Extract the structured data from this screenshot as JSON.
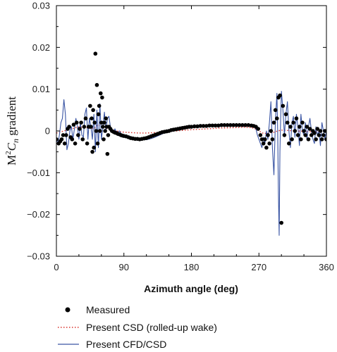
{
  "chart_data": {
    "type": "line",
    "title": "",
    "xlabel": "Azimuth angle (deg)",
    "ylabel_prefix": "M",
    "ylabel_sup": "2",
    "ylabel_c": "C",
    "ylabel_sub": "n",
    "ylabel_suffix": " gradient",
    "xlim": [
      0,
      360
    ],
    "ylim": [
      -0.03,
      0.03
    ],
    "xticks": [
      0,
      90,
      180,
      270,
      360
    ],
    "xtick_labels": [
      "0",
      "90",
      "180",
      "270",
      "360"
    ],
    "yticks": [
      0.03,
      0.02,
      0.01,
      0,
      -0.01,
      -0.02,
      -0.03
    ],
    "ytick_labels": [
      "0.03",
      "0.02",
      "0.01",
      "0",
      "−0.01",
      "−0.02",
      "−0.03"
    ],
    "grid": false,
    "legend_position": "bottom",
    "series": [
      {
        "name": "Measured",
        "style": "markers",
        "color": "#000000",
        "x": [
          0,
          3,
          5,
          7,
          9,
          11,
          13,
          15,
          17,
          19,
          21,
          23,
          25,
          27,
          29,
          31,
          33,
          35,
          37,
          39,
          41,
          43,
          45,
          46,
          47,
          48,
          49,
          50,
          51,
          52,
          53,
          54,
          55,
          56,
          57,
          58,
          59,
          60,
          61,
          62,
          63,
          64,
          65,
          66,
          67,
          68,
          69,
          70,
          72,
          74,
          76,
          78,
          80,
          82,
          84,
          86,
          88,
          90,
          93,
          96,
          99,
          102,
          105,
          108,
          111,
          114,
          117,
          120,
          123,
          126,
          129,
          132,
          135,
          138,
          141,
          144,
          147,
          150,
          153,
          156,
          159,
          162,
          165,
          168,
          171,
          174,
          177,
          180,
          184,
          188,
          192,
          196,
          200,
          204,
          208,
          212,
          216,
          220,
          224,
          228,
          232,
          236,
          240,
          244,
          248,
          252,
          256,
          260,
          263,
          266,
          269,
          272,
          274,
          276,
          278,
          280,
          282,
          284,
          286,
          288,
          290,
          292,
          294,
          296,
          298,
          300,
          302,
          304,
          306,
          308,
          310,
          312,
          314,
          316,
          318,
          320,
          322,
          324,
          326,
          328,
          330,
          332,
          334,
          336,
          338,
          340,
          342,
          344,
          346,
          348,
          350,
          352,
          354,
          356,
          358,
          360
        ],
        "y": [
          -0.002,
          -0.003,
          -0.0025,
          -0.002,
          -0.001,
          -0.003,
          -0.001,
          0.0005,
          0.001,
          -0.0015,
          -0.002,
          0.0015,
          -0.003,
          0.002,
          -0.001,
          0.0005,
          0.002,
          -0.002,
          0.001,
          0.003,
          -0.003,
          0.001,
          0.006,
          0.001,
          0.003,
          -0.005,
          0.005,
          -0.004,
          0.002,
          0.0185,
          0.0,
          0.011,
          -0.003,
          0.004,
          0.006,
          0.0,
          0.009,
          0.002,
          0.008,
          0.001,
          -0.002,
          0.002,
          0.0,
          0.003,
          0.001,
          -0.0055,
          -0.001,
          0.001,
          0.0005,
          0.0,
          -0.0002,
          -0.0004,
          -0.0005,
          -0.0007,
          -0.0008,
          -0.001,
          -0.0011,
          -0.0012,
          -0.0013,
          -0.0015,
          -0.0017,
          -0.0018,
          -0.0019,
          -0.0019,
          -0.002,
          -0.0019,
          -0.0018,
          -0.0017,
          -0.0015,
          -0.0013,
          -0.0011,
          -0.0009,
          -0.0007,
          -0.0005,
          -0.0003,
          -0.0002,
          -0.0001,
          0.0,
          0.0002,
          0.0003,
          0.0004,
          0.0005,
          0.0006,
          0.0007,
          0.0008,
          0.0009,
          0.001,
          0.001,
          0.0011,
          0.0011,
          0.0012,
          0.0012,
          0.0012,
          0.0013,
          0.0013,
          0.0013,
          0.0013,
          0.0014,
          0.0014,
          0.0014,
          0.0014,
          0.0014,
          0.0014,
          0.0014,
          0.0014,
          0.0014,
          0.0014,
          0.0013,
          0.0012,
          0.001,
          0.0005,
          -0.001,
          -0.002,
          -0.003,
          -0.002,
          -0.004,
          -0.001,
          -0.003,
          0.0,
          -0.002,
          0.002,
          0.005,
          0.003,
          0.008,
          0.0085,
          -0.022,
          0.006,
          -0.001,
          0.004,
          0.002,
          -0.003,
          0.001,
          -0.002,
          0.002,
          0.0,
          0.003,
          -0.001,
          0.001,
          -0.002,
          0.002,
          0.0,
          -0.001,
          0.001,
          -0.002,
          0.0005,
          -0.001,
          0.0,
          -0.0005,
          -0.002,
          0.0005,
          -0.001,
          0.0,
          -0.002,
          -0.001,
          0.0,
          -0.002
        ]
      },
      {
        "name": "Present CSD (rolled-up wake)",
        "style": "dotted",
        "color": "#d9312b",
        "x": [
          0,
          10,
          20,
          30,
          40,
          50,
          55,
          60,
          65,
          70,
          80,
          90,
          100,
          110,
          120,
          140,
          160,
          180,
          200,
          220,
          240,
          250,
          260,
          265,
          270,
          275,
          280,
          290,
          295,
          300,
          310,
          320,
          330,
          340,
          350,
          360
        ],
        "y": [
          -0.0005,
          0.0,
          0.0005,
          0.001,
          0.0008,
          0.0005,
          0.0015,
          0.0012,
          0.0008,
          0.0003,
          0.0,
          -0.0003,
          -0.0004,
          -0.0005,
          -0.0005,
          -0.0003,
          0.0,
          0.0003,
          0.0005,
          0.0007,
          0.0008,
          0.0009,
          0.0008,
          0.0005,
          0.0,
          -0.0005,
          -0.0006,
          -0.0003,
          0.0,
          0.0002,
          0.0001,
          0.0,
          -0.0001,
          -0.0002,
          -0.0001,
          0.0
        ]
      },
      {
        "name": "Present CFD/CSD",
        "style": "line",
        "color": "#3a55a4",
        "x": [
          0,
          2,
          4,
          6,
          8,
          10,
          12,
          14,
          16,
          18,
          20,
          22,
          24,
          26,
          28,
          30,
          32,
          34,
          36,
          38,
          40,
          42,
          44,
          46,
          48,
          50,
          52,
          54,
          56,
          58,
          60,
          62,
          64,
          66,
          68,
          70,
          72,
          75,
          78,
          81,
          84,
          87,
          90,
          95,
          100,
          105,
          110,
          115,
          120,
          125,
          130,
          135,
          140,
          145,
          150,
          160,
          170,
          180,
          190,
          200,
          210,
          220,
          230,
          240,
          250,
          255,
          260,
          263,
          266,
          268,
          270,
          272,
          274,
          276,
          278,
          280,
          282,
          284,
          286,
          288,
          290,
          292,
          294,
          295,
          296,
          297,
          298,
          299,
          300,
          302,
          304,
          306,
          308,
          310,
          312,
          314,
          316,
          318,
          320,
          322,
          324,
          326,
          328,
          330,
          332,
          334,
          336,
          338,
          340,
          342,
          344,
          346,
          348,
          350,
          352,
          354,
          356,
          358,
          360
        ],
        "y": [
          -0.002,
          -0.003,
          -0.001,
          0.002,
          0.003,
          0.0075,
          0.004,
          -0.0045,
          -0.003,
          0.0,
          0.001,
          -0.002,
          0.0005,
          0.003,
          0.001,
          -0.002,
          0.002,
          -0.001,
          -0.0015,
          0.004,
          0.0055,
          -0.002,
          0.003,
          0.001,
          -0.002,
          0.004,
          -0.005,
          0.005,
          -0.004,
          0.0065,
          -0.002,
          0.001,
          0.0045,
          0.0,
          0.003,
          0.0035,
          0.001,
          -0.0005,
          0.0005,
          -0.0005,
          0.0,
          -0.0008,
          -0.001,
          -0.0012,
          -0.0015,
          -0.0018,
          -0.002,
          -0.0021,
          -0.0021,
          -0.0019,
          -0.0016,
          -0.0012,
          -0.0008,
          -0.0004,
          -0.0001,
          0.0004,
          0.0008,
          0.001,
          0.0011,
          0.0012,
          0.0013,
          0.0013,
          0.0014,
          0.0014,
          0.0014,
          0.0014,
          0.0013,
          0.0012,
          0.0005,
          -0.001,
          -0.002,
          -0.003,
          -0.004,
          -0.0015,
          -0.003,
          0.0,
          -0.002,
          0.002,
          0.007,
          -0.004,
          -0.0105,
          0.0025,
          0.009,
          0.0,
          -0.015,
          -0.025,
          -0.005,
          0.003,
          0.0095,
          0.005,
          -0.001,
          0.004,
          0.007,
          0.0,
          -0.004,
          0.002,
          0.0035,
          -0.0015,
          0.004,
          0.001,
          -0.0035,
          0.004,
          0.0,
          -0.001,
          0.002,
          -0.002,
          0.001,
          0.003,
          0.0,
          -0.002,
          -0.003,
          0.001,
          -0.001,
          0.0,
          -0.0035,
          0.002,
          0.0,
          -0.002,
          0.0
        ]
      }
    ]
  },
  "legend": [
    {
      "label": "Measured",
      "symbol": "dot",
      "color": "#000000"
    },
    {
      "label": "Present CSD (rolled-up wake)",
      "symbol": "dotted-line",
      "color": "#d9312b"
    },
    {
      "label": "Present CFD/CSD",
      "symbol": "line",
      "color": "#3a55a4"
    }
  ]
}
